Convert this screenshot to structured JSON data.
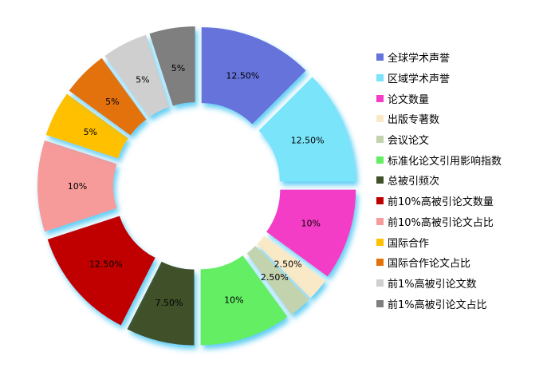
{
  "chart_data": {
    "type": "pie",
    "subtype": "doughnut-exploded",
    "title": "",
    "legend_position": "right",
    "background_color": "#FFFFFF",
    "glow_color": "#45C5F2",
    "label_color": "#000000",
    "total": 100,
    "segments": [
      {
        "label": "全球学术声誉",
        "value": 12.5,
        "display": "12.50%",
        "color": "#6673DB"
      },
      {
        "label": "区域学术声誉",
        "value": 12.5,
        "display": "12.50%",
        "color": "#79E4FA"
      },
      {
        "label": "论文数量",
        "value": 10,
        "display": "10%",
        "color": "#F43CC6"
      },
      {
        "label": "出版专著数",
        "value": 2.5,
        "display": "2.50%",
        "color": "#FAE9C7"
      },
      {
        "label": "会议论文",
        "value": 2.5,
        "display": "2.50%",
        "color": "#C3D3AE"
      },
      {
        "label": "标准化论文引用影响指数",
        "value": 10,
        "display": "10%",
        "color": "#63EE63"
      },
      {
        "label": "总被引频次",
        "value": 7.5,
        "display": "7.50%",
        "color": "#40512B"
      },
      {
        "label": "前10%高被引论文数量",
        "value": 12.5,
        "display": "12.50%",
        "color": "#C00000"
      },
      {
        "label": "前10%高被引论文占比",
        "value": 10,
        "display": "10%",
        "color": "#F79A9A"
      },
      {
        "label": "国际合作",
        "value": 5,
        "display": "5%",
        "color": "#FFC000"
      },
      {
        "label": "国际合作论文占比",
        "value": 5,
        "display": "5%",
        "color": "#E37209"
      },
      {
        "label": "前1%高被引论文数",
        "value": 5,
        "display": "5%",
        "color": "#CFCFCF"
      },
      {
        "label": "前1%高被引论文占比",
        "value": 5,
        "display": "5%",
        "color": "#7F7F7F"
      }
    ]
  }
}
